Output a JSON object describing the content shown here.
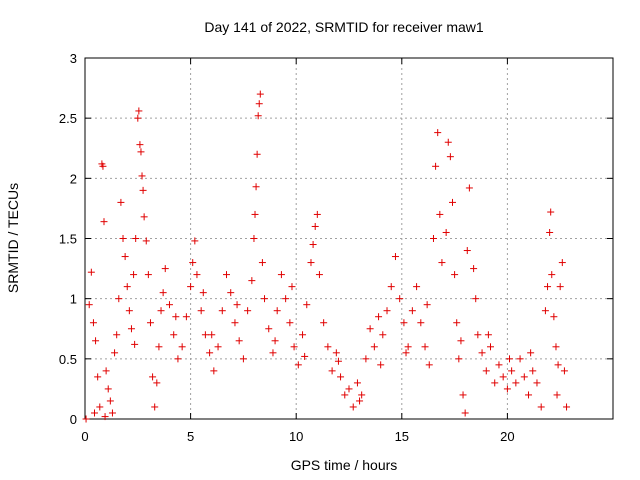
{
  "chart_data": {
    "type": "scatter",
    "title": "Day 141 of 2022, SRMTID for receiver maw1",
    "xlabel": "GPS time / hours",
    "ylabel": "SRMTID / TECUs",
    "xlim": [
      0,
      25
    ],
    "ylim": [
      0,
      3
    ],
    "xticks": [
      0,
      5,
      10,
      15,
      20
    ],
    "yticks": [
      0,
      0.5,
      1,
      1.5,
      2,
      2.5,
      3
    ],
    "xtick_labels": [
      "0",
      "5",
      "10",
      "15",
      "20"
    ],
    "ytick_labels": [
      "0",
      "0.5",
      "1",
      "1.5",
      "2",
      "2.5",
      "3"
    ],
    "grid": true,
    "marker": "+",
    "color": "#e00000",
    "series": [
      {
        "name": "maw1",
        "points": [
          [
            0.05,
            0.0
          ],
          [
            0.2,
            0.95
          ],
          [
            0.3,
            1.22
          ],
          [
            0.4,
            0.8
          ],
          [
            0.5,
            0.65
          ],
          [
            0.6,
            0.35
          ],
          [
            0.7,
            0.1
          ],
          [
            0.8,
            2.12
          ],
          [
            0.85,
            2.1
          ],
          [
            0.9,
            1.64
          ],
          [
            1.0,
            0.4
          ],
          [
            1.1,
            0.25
          ],
          [
            1.2,
            0.15
          ],
          [
            1.3,
            0.05
          ],
          [
            1.4,
            0.55
          ],
          [
            1.5,
            0.7
          ],
          [
            1.6,
            1.0
          ],
          [
            1.7,
            1.8
          ],
          [
            1.8,
            1.5
          ],
          [
            1.9,
            1.35
          ],
          [
            2.0,
            1.1
          ],
          [
            2.1,
            0.9
          ],
          [
            2.2,
            0.75
          ],
          [
            2.3,
            1.2
          ],
          [
            2.4,
            1.5
          ],
          [
            2.5,
            2.5
          ],
          [
            2.55,
            2.56
          ],
          [
            2.6,
            2.28
          ],
          [
            2.65,
            2.22
          ],
          [
            2.7,
            2.02
          ],
          [
            2.75,
            1.9
          ],
          [
            2.8,
            1.68
          ],
          [
            2.9,
            1.48
          ],
          [
            3.0,
            1.2
          ],
          [
            3.1,
            0.8
          ],
          [
            3.2,
            0.35
          ],
          [
            3.3,
            0.1
          ],
          [
            3.4,
            0.3
          ],
          [
            3.5,
            0.6
          ],
          [
            3.6,
            0.9
          ],
          [
            3.7,
            1.05
          ],
          [
            3.8,
            1.25
          ],
          [
            4.0,
            0.95
          ],
          [
            4.2,
            0.7
          ],
          [
            4.4,
            0.5
          ],
          [
            4.6,
            0.6
          ],
          [
            4.8,
            0.85
          ],
          [
            5.0,
            1.1
          ],
          [
            5.1,
            1.3
          ],
          [
            5.2,
            1.48
          ],
          [
            5.3,
            1.2
          ],
          [
            5.5,
            0.9
          ],
          [
            5.7,
            0.7
          ],
          [
            5.9,
            0.55
          ],
          [
            6.1,
            0.4
          ],
          [
            6.3,
            0.6
          ],
          [
            6.5,
            0.9
          ],
          [
            6.7,
            1.2
          ],
          [
            6.9,
            1.05
          ],
          [
            7.1,
            0.8
          ],
          [
            7.3,
            0.65
          ],
          [
            7.5,
            0.5
          ],
          [
            7.7,
            0.9
          ],
          [
            7.9,
            1.15
          ],
          [
            8.0,
            1.5
          ],
          [
            8.05,
            1.7
          ],
          [
            8.1,
            1.93
          ],
          [
            8.15,
            2.2
          ],
          [
            8.2,
            2.52
          ],
          [
            8.25,
            2.62
          ],
          [
            8.3,
            2.7
          ],
          [
            8.4,
            1.3
          ],
          [
            8.5,
            1.0
          ],
          [
            8.7,
            0.75
          ],
          [
            8.9,
            0.55
          ],
          [
            9.1,
            0.9
          ],
          [
            9.3,
            1.2
          ],
          [
            9.5,
            1.0
          ],
          [
            9.7,
            0.8
          ],
          [
            9.9,
            0.6
          ],
          [
            10.1,
            0.45
          ],
          [
            10.3,
            0.7
          ],
          [
            10.5,
            0.95
          ],
          [
            10.7,
            1.3
          ],
          [
            10.8,
            1.45
          ],
          [
            10.9,
            1.6
          ],
          [
            11.0,
            1.7
          ],
          [
            11.1,
            1.2
          ],
          [
            11.3,
            0.8
          ],
          [
            11.5,
            0.6
          ],
          [
            11.7,
            0.4
          ],
          [
            11.9,
            0.55
          ],
          [
            12.1,
            0.35
          ],
          [
            12.3,
            0.2
          ],
          [
            12.5,
            0.25
          ],
          [
            12.7,
            0.1
          ],
          [
            12.9,
            0.3
          ],
          [
            13.1,
            0.2
          ],
          [
            13.3,
            0.5
          ],
          [
            13.5,
            0.75
          ],
          [
            13.7,
            0.6
          ],
          [
            13.9,
            0.85
          ],
          [
            14.1,
            0.7
          ],
          [
            14.3,
            0.9
          ],
          [
            14.5,
            1.1
          ],
          [
            14.7,
            1.35
          ],
          [
            14.9,
            1.0
          ],
          [
            15.1,
            0.8
          ],
          [
            15.3,
            0.6
          ],
          [
            15.5,
            0.9
          ],
          [
            15.7,
            1.1
          ],
          [
            15.9,
            0.8
          ],
          [
            16.1,
            0.6
          ],
          [
            16.3,
            0.45
          ],
          [
            16.5,
            1.5
          ],
          [
            16.6,
            2.1
          ],
          [
            16.7,
            2.38
          ],
          [
            16.8,
            1.7
          ],
          [
            16.9,
            1.3
          ],
          [
            17.1,
            1.55
          ],
          [
            17.2,
            2.3
          ],
          [
            17.3,
            2.18
          ],
          [
            17.4,
            1.8
          ],
          [
            17.5,
            1.2
          ],
          [
            17.6,
            0.8
          ],
          [
            17.7,
            0.5
          ],
          [
            17.9,
            0.2
          ],
          [
            18.0,
            0.05
          ],
          [
            18.1,
            1.4
          ],
          [
            18.2,
            1.92
          ],
          [
            18.4,
            1.25
          ],
          [
            18.5,
            1.0
          ],
          [
            18.6,
            0.7
          ],
          [
            18.8,
            0.55
          ],
          [
            19.0,
            0.4
          ],
          [
            19.2,
            0.6
          ],
          [
            19.4,
            0.3
          ],
          [
            19.6,
            0.45
          ],
          [
            19.8,
            0.35
          ],
          [
            20.0,
            0.25
          ],
          [
            20.2,
            0.4
          ],
          [
            20.4,
            0.3
          ],
          [
            20.6,
            0.5
          ],
          [
            20.8,
            0.35
          ],
          [
            21.0,
            0.2
          ],
          [
            21.2,
            0.4
          ],
          [
            21.4,
            0.3
          ],
          [
            21.6,
            0.1
          ],
          [
            21.8,
            0.9
          ],
          [
            21.9,
            1.1
          ],
          [
            22.0,
            1.55
          ],
          [
            22.05,
            1.72
          ],
          [
            22.1,
            1.2
          ],
          [
            22.2,
            0.85
          ],
          [
            22.3,
            0.6
          ],
          [
            22.4,
            0.45
          ],
          [
            22.5,
            1.1
          ],
          [
            22.6,
            1.3
          ],
          [
            22.7,
            0.4
          ],
          [
            22.8,
            0.1
          ],
          [
            0.45,
            0.05
          ],
          [
            0.95,
            0.02
          ],
          [
            2.35,
            0.62
          ],
          [
            4.3,
            0.85
          ],
          [
            6.0,
            0.7
          ],
          [
            7.2,
            0.95
          ],
          [
            9.0,
            0.65
          ],
          [
            10.4,
            0.52
          ],
          [
            12.0,
            0.48
          ],
          [
            13.0,
            0.15
          ],
          [
            14.0,
            0.45
          ],
          [
            15.2,
            0.55
          ],
          [
            16.2,
            0.95
          ],
          [
            17.8,
            0.65
          ],
          [
            19.1,
            0.7
          ],
          [
            20.1,
            0.5
          ],
          [
            21.1,
            0.55
          ],
          [
            22.35,
            0.2
          ],
          [
            5.6,
            1.05
          ],
          [
            9.8,
            1.1
          ]
        ]
      }
    ]
  }
}
